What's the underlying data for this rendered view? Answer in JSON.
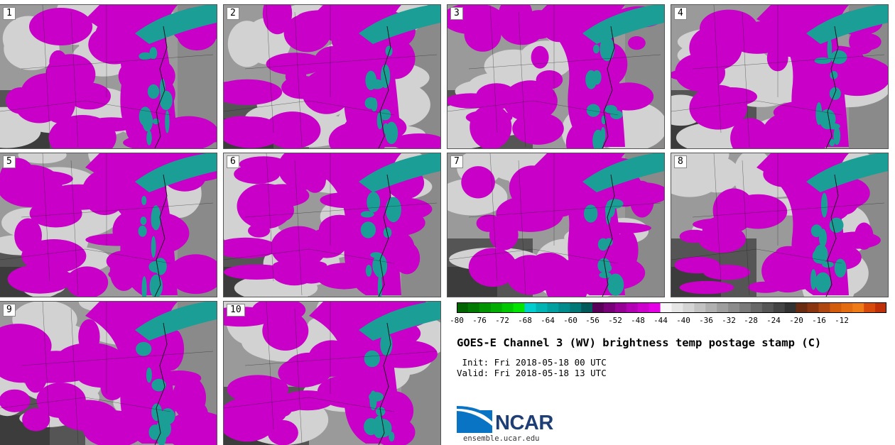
{
  "panels": [
    {
      "label": "1"
    },
    {
      "label": "2"
    },
    {
      "label": "3"
    },
    {
      "label": "4"
    },
    {
      "label": "5"
    },
    {
      "label": "6"
    },
    {
      "label": "7"
    },
    {
      "label": "8"
    },
    {
      "label": "9"
    },
    {
      "label": "10"
    }
  ],
  "colorbar": {
    "min": -80,
    "max": -10,
    "step": 2,
    "tick_labels": [
      "-80",
      "-76",
      "-72",
      "-68",
      "-64",
      "-60",
      "-56",
      "-52",
      "-48",
      "-44",
      "-40",
      "-36",
      "-32",
      "-28",
      "-24",
      "-20",
      "-16",
      "-12"
    ],
    "colors": [
      "#006400",
      "#007a00",
      "#009400",
      "#00ad00",
      "#00c800",
      "#00e400",
      "#00cdcd",
      "#00b4b4",
      "#00a0a0",
      "#008c8c",
      "#007878",
      "#005a5a",
      "#5a005a",
      "#780078",
      "#960096",
      "#b400b4",
      "#cd00cd",
      "#e600e6",
      "#f8f8f8",
      "#e6e6e6",
      "#d4d4d4",
      "#c2c2c2",
      "#b0b0b0",
      "#9e9e9e",
      "#8c8c8c",
      "#7a7a7a",
      "#686868",
      "#565656",
      "#444444",
      "#323232",
      "#6b2b10",
      "#8a3410",
      "#b04610",
      "#d25c0c",
      "#e36c10",
      "#ee7a18",
      "#d84a0c",
      "#c03008"
    ]
  },
  "title": "GOES-E Channel 3 (WV) brightness temp postage stamp (C)",
  "init_text": " Init: Fri 2018-05-18 00 UTC",
  "valid_text": "Valid: Fri 2018-05-18 13 UTC",
  "logo_text": "NCAR",
  "url_text": "ensemble.ucar.edu",
  "colors": {
    "magenta": "#c800c8",
    "teal": "#1a9e96",
    "gray_light": "#b4b4b4",
    "gray_dark": "#3c3c3c"
  }
}
